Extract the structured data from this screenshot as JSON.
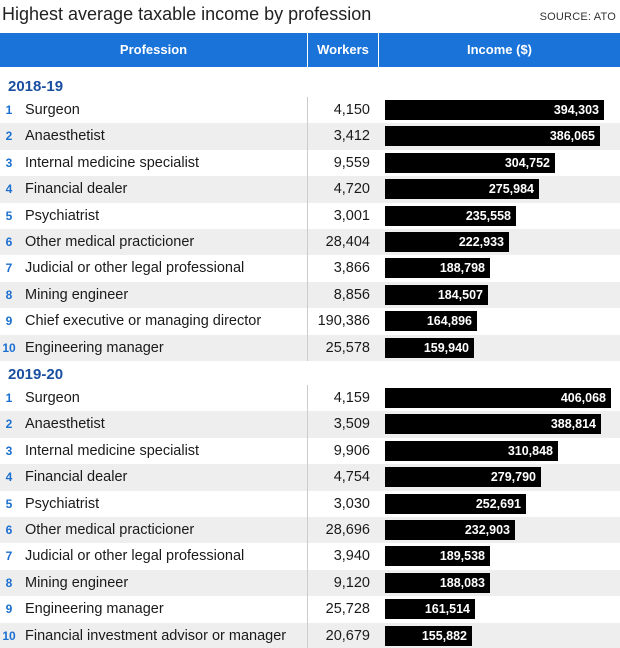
{
  "title": "Highest average taxable income by profession",
  "source": "SOURCE: ATO",
  "columns": {
    "profession": "Profession",
    "workers": "Workers",
    "income": "Income ($)"
  },
  "colors": {
    "header": "#1a73d9",
    "year": "#1a4fa0",
    "rank": "#1a6fd0",
    "bar": "#000000"
  },
  "chart_data": {
    "type": "bar",
    "orientation": "horizontal",
    "groups": [
      {
        "year": "2018-19",
        "rows": [
          {
            "rank": "1",
            "profession": "Surgeon",
            "workers": "4,150",
            "income": 394303,
            "income_label": "394,303"
          },
          {
            "rank": "2",
            "profession": "Anaesthetist",
            "workers": "3,412",
            "income": 386065,
            "income_label": "386,065"
          },
          {
            "rank": "3",
            "profession": "Internal medicine specialist",
            "workers": "9,559",
            "income": 304752,
            "income_label": "304,752"
          },
          {
            "rank": "4",
            "profession": "Financial dealer",
            "workers": "4,720",
            "income": 275984,
            "income_label": "275,984"
          },
          {
            "rank": "5",
            "profession": "Psychiatrist",
            "workers": "3,001",
            "income": 235558,
            "income_label": "235,558"
          },
          {
            "rank": "6",
            "profession": "Other medical practicioner",
            "workers": "28,404",
            "income": 222933,
            "income_label": "222,933"
          },
          {
            "rank": "7",
            "profession": "Judicial or other legal professional",
            "workers": "3,866",
            "income": 188798,
            "income_label": "188,798"
          },
          {
            "rank": "8",
            "profession": "Mining engineer",
            "workers": "8,856",
            "income": 184507,
            "income_label": "184,507"
          },
          {
            "rank": "9",
            "profession": "Chief executive or managing director",
            "workers": "190,386",
            "income": 164896,
            "income_label": "164,896"
          },
          {
            "rank": "10",
            "profession": "Engineering manager",
            "workers": "25,578",
            "income": 159940,
            "income_label": "159,940"
          }
        ]
      },
      {
        "year": "2019-20",
        "rows": [
          {
            "rank": "1",
            "profession": "Surgeon",
            "workers": "4,159",
            "income": 406068,
            "income_label": "406,068"
          },
          {
            "rank": "2",
            "profession": "Anaesthetist",
            "workers": "3,509",
            "income": 388814,
            "income_label": "388,814"
          },
          {
            "rank": "3",
            "profession": "Internal medicine specialist",
            "workers": "9,906",
            "income": 310848,
            "income_label": "310,848"
          },
          {
            "rank": "4",
            "profession": "Financial dealer",
            "workers": "4,754",
            "income": 279790,
            "income_label": "279,790"
          },
          {
            "rank": "5",
            "profession": "Psychiatrist",
            "workers": "3,030",
            "income": 252691,
            "income_label": "252,691"
          },
          {
            "rank": "6",
            "profession": "Other medical practicioner",
            "workers": "28,696",
            "income": 232903,
            "income_label": "232,903"
          },
          {
            "rank": "7",
            "profession": "Judicial or other legal professional",
            "workers": "3,940",
            "income": 189538,
            "income_label": "189,538"
          },
          {
            "rank": "8",
            "profession": "Mining engineer",
            "workers": "9,120",
            "income": 188083,
            "income_label": "188,083"
          },
          {
            "rank": "9",
            "profession": "Engineering manager",
            "workers": "25,728",
            "income": 161514,
            "income_label": "161,514"
          },
          {
            "rank": "10",
            "profession": "Financial investment advisor or manager",
            "workers": "20,679",
            "income": 155882,
            "income_label": "155,882"
          }
        ]
      }
    ]
  }
}
